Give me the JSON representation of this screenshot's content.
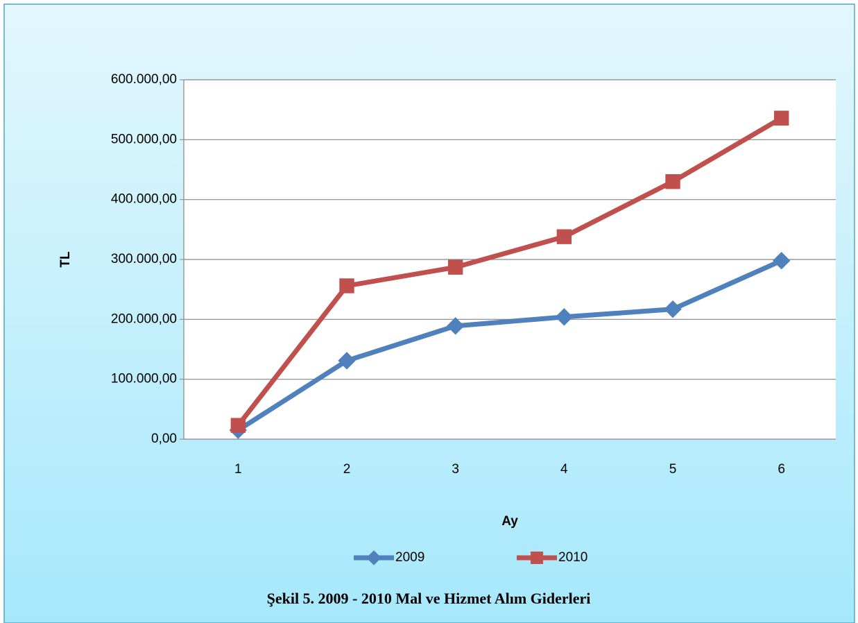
{
  "chart_data": {
    "type": "line",
    "x_label": "Ay",
    "y_label": "TL",
    "caption": "Şekil 5. 2009 - 2010 Mal ve Hizmet Alım Giderleri",
    "categories": [
      "1",
      "2",
      "3",
      "4",
      "5",
      "6"
    ],
    "series": [
      {
        "name": "2009",
        "color": "#4f81bd",
        "marker": "diamond",
        "values": [
          15000,
          131000,
          189000,
          204000,
          217000,
          298000
        ]
      },
      {
        "name": "2010",
        "color": "#c0504d",
        "marker": "square",
        "values": [
          23000,
          256000,
          287000,
          338000,
          430000,
          536000
        ]
      }
    ],
    "ylim": [
      0,
      600000
    ],
    "yticks": [
      {
        "value": 0,
        "label": "0,00"
      },
      {
        "value": 100000,
        "label": "100.000,00"
      },
      {
        "value": 200000,
        "label": "200.000,00"
      },
      {
        "value": 300000,
        "label": "300.000,00"
      },
      {
        "value": 400000,
        "label": "400.000,00"
      },
      {
        "value": 500000,
        "label": "500.000,00"
      },
      {
        "value": 600000,
        "label": "600.000,00"
      }
    ],
    "grid": true,
    "legend": "bottom"
  }
}
